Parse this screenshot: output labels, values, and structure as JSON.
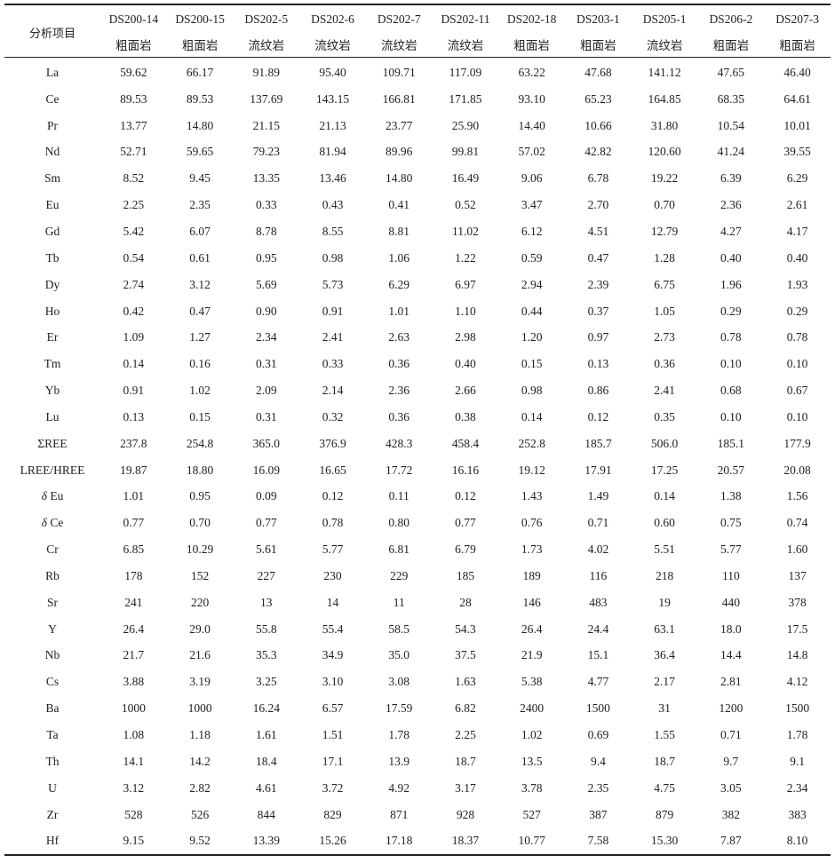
{
  "table": {
    "corner_label": "分析项目",
    "samples": [
      {
        "id": "DS200-14",
        "rock": "粗面岩"
      },
      {
        "id": "DS200-15",
        "rock": "粗面岩"
      },
      {
        "id": "DS202-5",
        "rock": "流纹岩"
      },
      {
        "id": "DS202-6",
        "rock": "流纹岩"
      },
      {
        "id": "DS202-7",
        "rock": "流纹岩"
      },
      {
        "id": "DS202-11",
        "rock": "流纹岩"
      },
      {
        "id": "DS202-18",
        "rock": "粗面岩"
      },
      {
        "id": "DS203-1",
        "rock": "粗面岩"
      },
      {
        "id": "DS205-1",
        "rock": "流纹岩"
      },
      {
        "id": "DS206-2",
        "rock": "粗面岩"
      },
      {
        "id": "DS207-3",
        "rock": "粗面岩"
      }
    ],
    "rows": [
      {
        "label": "La",
        "values": [
          "59.62",
          "66.17",
          "91.89",
          "95.40",
          "109.71",
          "117.09",
          "63.22",
          "47.68",
          "141.12",
          "47.65",
          "46.40"
        ]
      },
      {
        "label": "Ce",
        "values": [
          "89.53",
          "89.53",
          "137.69",
          "143.15",
          "166.81",
          "171.85",
          "93.10",
          "65.23",
          "164.85",
          "68.35",
          "64.61"
        ]
      },
      {
        "label": "Pr",
        "values": [
          "13.77",
          "14.80",
          "21.15",
          "21.13",
          "23.77",
          "25.90",
          "14.40",
          "10.66",
          "31.80",
          "10.54",
          "10.01"
        ]
      },
      {
        "label": "Nd",
        "values": [
          "52.71",
          "59.65",
          "79.23",
          "81.94",
          "89.96",
          "99.81",
          "57.02",
          "42.82",
          "120.60",
          "41.24",
          "39.55"
        ]
      },
      {
        "label": "Sm",
        "values": [
          "8.52",
          "9.45",
          "13.35",
          "13.46",
          "14.80",
          "16.49",
          "9.06",
          "6.78",
          "19.22",
          "6.39",
          "6.29"
        ]
      },
      {
        "label": "Eu",
        "values": [
          "2.25",
          "2.35",
          "0.33",
          "0.43",
          "0.41",
          "0.52",
          "3.47",
          "2.70",
          "0.70",
          "2.36",
          "2.61"
        ]
      },
      {
        "label": "Gd",
        "values": [
          "5.42",
          "6.07",
          "8.78",
          "8.55",
          "8.81",
          "11.02",
          "6.12",
          "4.51",
          "12.79",
          "4.27",
          "4.17"
        ]
      },
      {
        "label": "Tb",
        "values": [
          "0.54",
          "0.61",
          "0.95",
          "0.98",
          "1.06",
          "1.22",
          "0.59",
          "0.47",
          "1.28",
          "0.40",
          "0.40"
        ]
      },
      {
        "label": "Dy",
        "values": [
          "2.74",
          "3.12",
          "5.69",
          "5.73",
          "6.29",
          "6.97",
          "2.94",
          "2.39",
          "6.75",
          "1.96",
          "1.93"
        ]
      },
      {
        "label": "Ho",
        "values": [
          "0.42",
          "0.47",
          "0.90",
          "0.91",
          "1.01",
          "1.10",
          "0.44",
          "0.37",
          "1.05",
          "0.29",
          "0.29"
        ]
      },
      {
        "label": "Er",
        "values": [
          "1.09",
          "1.27",
          "2.34",
          "2.41",
          "2.63",
          "2.98",
          "1.20",
          "0.97",
          "2.73",
          "0.78",
          "0.78"
        ]
      },
      {
        "label": "Tm",
        "values": [
          "0.14",
          "0.16",
          "0.31",
          "0.33",
          "0.36",
          "0.40",
          "0.15",
          "0.13",
          "0.36",
          "0.10",
          "0.10"
        ]
      },
      {
        "label": "Yb",
        "values": [
          "0.91",
          "1.02",
          "2.09",
          "2.14",
          "2.36",
          "2.66",
          "0.98",
          "0.86",
          "2.41",
          "0.68",
          "0.67"
        ]
      },
      {
        "label": "Lu",
        "values": [
          "0.13",
          "0.15",
          "0.31",
          "0.32",
          "0.36",
          "0.38",
          "0.14",
          "0.12",
          "0.35",
          "0.10",
          "0.10"
        ]
      },
      {
        "label": "ΣREE",
        "values": [
          "237.8",
          "254.8",
          "365.0",
          "376.9",
          "428.3",
          "458.4",
          "252.8",
          "185.7",
          "506.0",
          "185.1",
          "177.9"
        ]
      },
      {
        "label": "LREE/HREE",
        "values": [
          "19.87",
          "18.80",
          "16.09",
          "16.65",
          "17.72",
          "16.16",
          "19.12",
          "17.91",
          "17.25",
          "20.57",
          "20.08"
        ]
      },
      {
        "label": "δ Eu",
        "values": [
          "1.01",
          "0.95",
          "0.09",
          "0.12",
          "0.11",
          "0.12",
          "1.43",
          "1.49",
          "0.14",
          "1.38",
          "1.56"
        ]
      },
      {
        "label": "δ Ce",
        "values": [
          "0.77",
          "0.70",
          "0.77",
          "0.78",
          "0.80",
          "0.77",
          "0.76",
          "0.71",
          "0.60",
          "0.75",
          "0.74"
        ]
      },
      {
        "label": "Cr",
        "values": [
          "6.85",
          "10.29",
          "5.61",
          "5.77",
          "6.81",
          "6.79",
          "1.73",
          "4.02",
          "5.51",
          "5.77",
          "1.60"
        ]
      },
      {
        "label": "Rb",
        "values": [
          "178",
          "152",
          "227",
          "230",
          "229",
          "185",
          "189",
          "116",
          "218",
          "110",
          "137"
        ]
      },
      {
        "label": "Sr",
        "values": [
          "241",
          "220",
          "13",
          "14",
          "11",
          "28",
          "146",
          "483",
          "19",
          "440",
          "378"
        ]
      },
      {
        "label": "Y",
        "values": [
          "26.4",
          "29.0",
          "55.8",
          "55.4",
          "58.5",
          "54.3",
          "26.4",
          "24.4",
          "63.1",
          "18.0",
          "17.5"
        ]
      },
      {
        "label": "Nb",
        "values": [
          "21.7",
          "21.6",
          "35.3",
          "34.9",
          "35.0",
          "37.5",
          "21.9",
          "15.1",
          "36.4",
          "14.4",
          "14.8"
        ]
      },
      {
        "label": "Cs",
        "values": [
          "3.88",
          "3.19",
          "3.25",
          "3.10",
          "3.08",
          "1.63",
          "5.38",
          "4.77",
          "2.17",
          "2.81",
          "4.12"
        ]
      },
      {
        "label": "Ba",
        "values": [
          "1000",
          "1000",
          "16.24",
          "6.57",
          "17.59",
          "6.82",
          "2400",
          "1500",
          "31",
          "1200",
          "1500"
        ]
      },
      {
        "label": "Ta",
        "values": [
          "1.08",
          "1.18",
          "1.61",
          "1.51",
          "1.78",
          "2.25",
          "1.02",
          "0.69",
          "1.55",
          "0.71",
          "1.78"
        ]
      },
      {
        "label": "Th",
        "values": [
          "14.1",
          "14.2",
          "18.4",
          "17.1",
          "13.9",
          "18.7",
          "13.5",
          "9.4",
          "18.7",
          "9.7",
          "9.1"
        ]
      },
      {
        "label": "U",
        "values": [
          "3.12",
          "2.82",
          "4.61",
          "3.72",
          "4.92",
          "3.17",
          "3.78",
          "2.35",
          "4.75",
          "3.05",
          "2.34"
        ]
      },
      {
        "label": "Zr",
        "values": [
          "528",
          "526",
          "844",
          "829",
          "871",
          "928",
          "527",
          "387",
          "879",
          "382",
          "383"
        ]
      },
      {
        "label": "Hf",
        "values": [
          "9.15",
          "9.52",
          "13.39",
          "15.26",
          "17.18",
          "18.37",
          "10.77",
          "7.58",
          "15.30",
          "7.87",
          "8.10"
        ]
      }
    ]
  }
}
